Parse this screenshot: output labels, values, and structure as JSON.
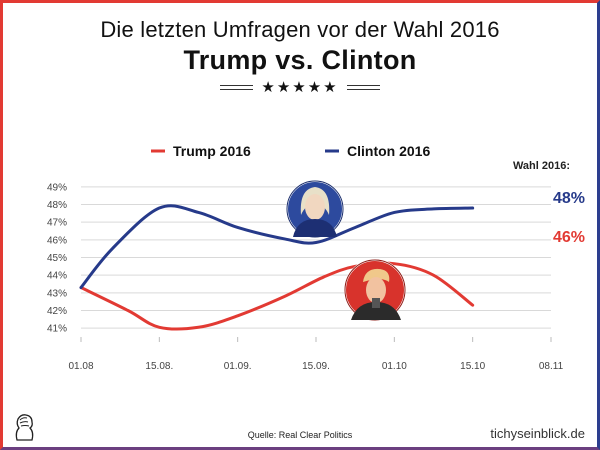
{
  "header": {
    "kicker": "Die letzten Umfragen vor der Wahl 2016",
    "headline": "Trump vs. Clinton",
    "stars": "★★★★★"
  },
  "footer": {
    "source": "Quelle: Real Clear Politics",
    "brand": "tichyseinblick.de"
  },
  "colors": {
    "trump": "#e23a33",
    "clinton": "#263a8a",
    "grid": "#d9d9d9",
    "axis_text": "#444444"
  },
  "chart_data": {
    "type": "line",
    "title": "Trump vs. Clinton",
    "x_labels": [
      "01.08",
      "15.08.",
      "01.09.",
      "15.09.",
      "01.10",
      "15.10",
      "08.11"
    ],
    "y_labels": [
      "41%",
      "42%",
      "43%",
      "44%",
      "45%",
      "46%",
      "47%",
      "48%",
      "49%"
    ],
    "ylim": [
      40.5,
      49.5
    ],
    "grid": true,
    "legend_position": "top",
    "series": [
      {
        "name": "Trump 2016",
        "color": "#e23a33",
        "x": [
          0,
          0.6,
          1.0,
          1.5,
          2.0,
          2.6,
          3.1,
          3.5,
          4.0,
          4.5,
          5.0
        ],
        "y": [
          43.3,
          42.0,
          41.05,
          41.05,
          41.7,
          42.8,
          43.9,
          44.5,
          44.65,
          44.0,
          42.3
        ]
      },
      {
        "name": "Clinton 2016",
        "color": "#263a8a",
        "x": [
          0,
          0.4,
          1.0,
          1.5,
          2.0,
          2.6,
          3.0,
          3.5,
          4.0,
          4.5,
          5.0
        ],
        "y": [
          43.3,
          45.5,
          47.8,
          47.55,
          46.7,
          46.05,
          45.85,
          46.7,
          47.55,
          47.75,
          47.8
        ]
      }
    ],
    "result_label": "Wahl 2016:",
    "results": [
      {
        "name": "Clinton",
        "value": "48%",
        "color": "#263a8a"
      },
      {
        "name": "Trump",
        "value": "46%",
        "color": "#e23a33"
      }
    ]
  }
}
